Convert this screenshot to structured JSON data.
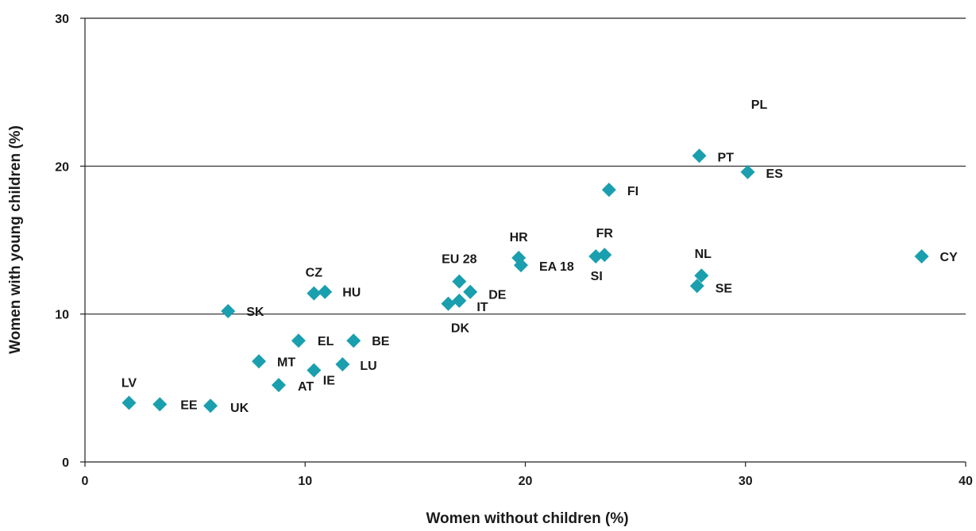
{
  "chart_data": {
    "type": "scatter",
    "title": "",
    "xlabel": "Women without children (%)",
    "ylabel": "Women with young children (%)",
    "xlim": [
      0,
      40
    ],
    "ylim": [
      0,
      30
    ],
    "x_ticks": [
      0,
      10,
      20,
      30,
      40
    ],
    "y_ticks": [
      0,
      10,
      20,
      30
    ],
    "grid": "horizontal",
    "marker": "diamond",
    "marker_color": "#1a9fae",
    "points": [
      {
        "label": "LV",
        "x": 2.0,
        "y": 4.0
      },
      {
        "label": "EE",
        "x": 3.4,
        "y": 3.9
      },
      {
        "label": "UK",
        "x": 5.7,
        "y": 3.8
      },
      {
        "label": "SK",
        "x": 6.5,
        "y": 10.2
      },
      {
        "label": "MT",
        "x": 7.9,
        "y": 6.8
      },
      {
        "label": "AT",
        "x": 8.8,
        "y": 5.2
      },
      {
        "label": "EL",
        "x": 9.7,
        "y": 8.2
      },
      {
        "label": "IE",
        "x": 10.4,
        "y": 6.2
      },
      {
        "label": "CZ",
        "x": 10.4,
        "y": 11.4
      },
      {
        "label": "HU",
        "x": 10.9,
        "y": 11.5
      },
      {
        "label": "LU",
        "x": 11.7,
        "y": 6.6
      },
      {
        "label": "BE",
        "x": 12.2,
        "y": 8.2
      },
      {
        "label": "DK",
        "x": 16.5,
        "y": 10.7
      },
      {
        "label": "IT",
        "x": 17.0,
        "y": 10.9
      },
      {
        "label": "EU 28",
        "x": 17.0,
        "y": 12.2
      },
      {
        "label": "DE",
        "x": 17.5,
        "y": 11.5
      },
      {
        "label": "HR",
        "x": 19.7,
        "y": 13.8
      },
      {
        "label": "EA 18",
        "x": 19.8,
        "y": 13.3
      },
      {
        "label": "SI",
        "x": 23.2,
        "y": 13.9
      },
      {
        "label": "FR",
        "x": 23.6,
        "y": 14.0
      },
      {
        "label": "FI",
        "x": 23.8,
        "y": 18.4
      },
      {
        "label": "SE",
        "x": 27.8,
        "y": 11.9
      },
      {
        "label": "NL",
        "x": 28.0,
        "y": 12.6
      },
      {
        "label": "PT",
        "x": 27.9,
        "y": 20.7
      },
      {
        "label": "ES",
        "x": 30.1,
        "y": 19.6
      },
      {
        "label": "CY",
        "x": 38.0,
        "y": 13.9
      },
      {
        "label": "PL",
        "x": null,
        "y": null
      }
    ]
  }
}
